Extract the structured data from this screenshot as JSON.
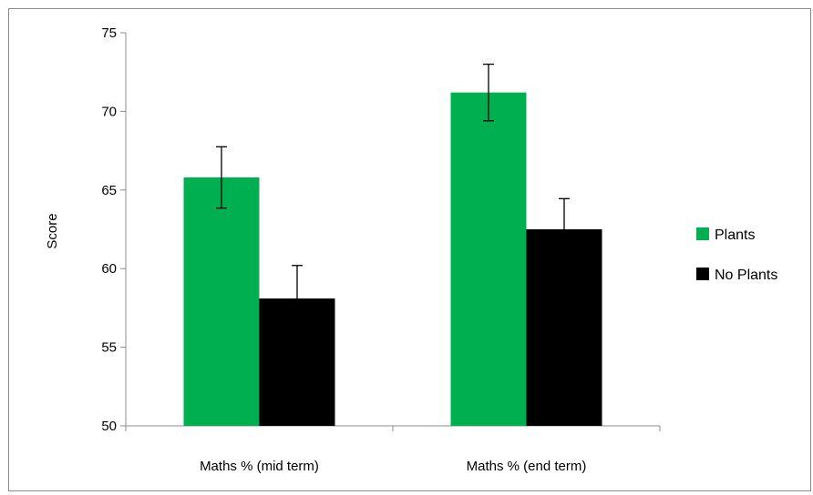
{
  "chart_data": {
    "type": "bar",
    "title": "",
    "xlabel": "",
    "ylabel": "Score",
    "ylim": [
      50,
      75
    ],
    "yticks": [
      "50",
      "55",
      "60",
      "65",
      "70",
      "75"
    ],
    "ytick_values": [
      50,
      55,
      60,
      65,
      70,
      75
    ],
    "categories": [
      "Maths % (mid term)",
      "Maths % (end term)"
    ],
    "series": [
      {
        "name": "Plants",
        "color": "#00b050",
        "values": [
          65.8,
          71.2
        ],
        "error": [
          1.95,
          1.8
        ]
      },
      {
        "name": "No Plants",
        "color": "#000000",
        "values": [
          58.1,
          62.5
        ],
        "error": [
          2.1,
          1.95
        ]
      }
    ],
    "legend": "right",
    "grid": false
  }
}
